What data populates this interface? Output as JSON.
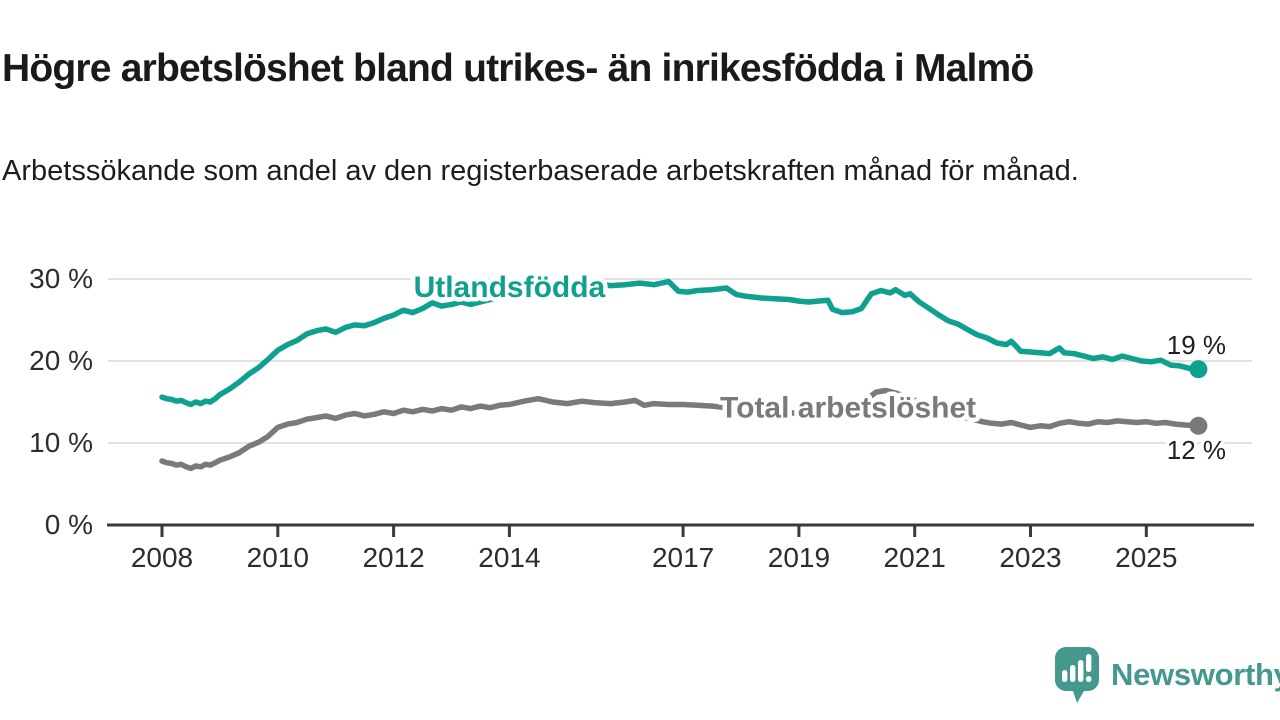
{
  "header": {
    "title": "Högre arbetslöshet bland utrikes- än inrikesfödda i Malmö",
    "subtitle": "Arbetssökande som andel av den registerbaserade arbetskraften månad för månad."
  },
  "chart_data": {
    "type": "line",
    "title": "Högre arbetslöshet bland utrikes- än inrikesfödda i Malmö",
    "xlabel": "",
    "ylabel": "",
    "grid": "horizontal",
    "xlim": [
      2007.05,
      2026.65
    ],
    "ylim": [
      0,
      33
    ],
    "x_axis": {
      "ticks": [
        2008,
        2010,
        2012,
        2014,
        2017,
        2019,
        2021,
        2023,
        2025
      ],
      "tick_labels": [
        "2008",
        "2010",
        "2012",
        "2014",
        "2017",
        "2019",
        "2021",
        "2023",
        "2025"
      ]
    },
    "y_axis": {
      "ticks": [
        {
          "value": 0,
          "label": "0 %"
        },
        {
          "value": 10,
          "label": "10 %"
        },
        {
          "value": 20,
          "label": "20 %"
        },
        {
          "value": 30,
          "label": "30 %"
        }
      ]
    },
    "series": [
      {
        "name": "Utlandsfödda",
        "color": "#10a08f",
        "end_label": "19 %",
        "label_anchor": {
          "year": 2014.0,
          "value": 29.0
        },
        "points": [
          [
            2008.0,
            15.6
          ],
          [
            2008.08,
            15.4
          ],
          [
            2008.17,
            15.3
          ],
          [
            2008.25,
            15.1
          ],
          [
            2008.33,
            15.2
          ],
          [
            2008.42,
            14.9
          ],
          [
            2008.5,
            14.7
          ],
          [
            2008.58,
            15.0
          ],
          [
            2008.67,
            14.8
          ],
          [
            2008.75,
            15.1
          ],
          [
            2008.83,
            15.0
          ],
          [
            2008.92,
            15.4
          ],
          [
            2009.0,
            15.9
          ],
          [
            2009.17,
            16.6
          ],
          [
            2009.33,
            17.4
          ],
          [
            2009.5,
            18.4
          ],
          [
            2009.67,
            19.2
          ],
          [
            2009.83,
            20.2
          ],
          [
            2010.0,
            21.3
          ],
          [
            2010.17,
            22.0
          ],
          [
            2010.33,
            22.5
          ],
          [
            2010.5,
            23.3
          ],
          [
            2010.67,
            23.7
          ],
          [
            2010.83,
            23.9
          ],
          [
            2011.0,
            23.5
          ],
          [
            2011.17,
            24.1
          ],
          [
            2011.33,
            24.4
          ],
          [
            2011.5,
            24.3
          ],
          [
            2011.67,
            24.7
          ],
          [
            2011.83,
            25.2
          ],
          [
            2012.0,
            25.6
          ],
          [
            2012.17,
            26.2
          ],
          [
            2012.33,
            25.9
          ],
          [
            2012.5,
            26.4
          ],
          [
            2012.67,
            27.1
          ],
          [
            2012.83,
            26.7
          ],
          [
            2013.0,
            26.9
          ],
          [
            2013.17,
            27.2
          ],
          [
            2013.33,
            26.9
          ],
          [
            2013.5,
            27.2
          ],
          [
            2013.67,
            27.5
          ],
          [
            2013.83,
            27.7
          ],
          [
            2014.0,
            27.9
          ],
          [
            2014.25,
            28.2
          ],
          [
            2014.5,
            28.5
          ],
          [
            2014.75,
            28.4
          ],
          [
            2015.0,
            28.7
          ],
          [
            2015.25,
            29.0
          ],
          [
            2015.5,
            29.4
          ],
          [
            2015.75,
            29.2
          ],
          [
            2016.0,
            29.3
          ],
          [
            2016.25,
            29.5
          ],
          [
            2016.5,
            29.3
          ],
          [
            2016.75,
            29.7
          ],
          [
            2016.92,
            28.5
          ],
          [
            2017.08,
            28.4
          ],
          [
            2017.25,
            28.6
          ],
          [
            2017.5,
            28.7
          ],
          [
            2017.75,
            28.9
          ],
          [
            2017.92,
            28.1
          ],
          [
            2018.08,
            27.9
          ],
          [
            2018.33,
            27.7
          ],
          [
            2018.58,
            27.6
          ],
          [
            2018.83,
            27.5
          ],
          [
            2019.0,
            27.3
          ],
          [
            2019.17,
            27.2
          ],
          [
            2019.33,
            27.3
          ],
          [
            2019.5,
            27.4
          ],
          [
            2019.58,
            26.3
          ],
          [
            2019.75,
            25.9
          ],
          [
            2019.92,
            26.0
          ],
          [
            2020.08,
            26.4
          ],
          [
            2020.25,
            28.2
          ],
          [
            2020.42,
            28.6
          ],
          [
            2020.58,
            28.3
          ],
          [
            2020.67,
            28.7
          ],
          [
            2020.83,
            28.0
          ],
          [
            2020.92,
            28.2
          ],
          [
            2021.08,
            27.2
          ],
          [
            2021.25,
            26.4
          ],
          [
            2021.42,
            25.6
          ],
          [
            2021.58,
            24.9
          ],
          [
            2021.75,
            24.5
          ],
          [
            2021.92,
            23.8
          ],
          [
            2022.08,
            23.2
          ],
          [
            2022.25,
            22.8
          ],
          [
            2022.42,
            22.2
          ],
          [
            2022.58,
            22.0
          ],
          [
            2022.67,
            22.4
          ],
          [
            2022.83,
            21.2
          ],
          [
            2023.0,
            21.1
          ],
          [
            2023.17,
            21.0
          ],
          [
            2023.33,
            20.9
          ],
          [
            2023.5,
            21.6
          ],
          [
            2023.58,
            21.0
          ],
          [
            2023.75,
            20.9
          ],
          [
            2023.92,
            20.6
          ],
          [
            2024.08,
            20.3
          ],
          [
            2024.25,
            20.5
          ],
          [
            2024.42,
            20.2
          ],
          [
            2024.58,
            20.6
          ],
          [
            2024.75,
            20.3
          ],
          [
            2024.92,
            20.0
          ],
          [
            2025.08,
            19.9
          ],
          [
            2025.25,
            20.1
          ],
          [
            2025.42,
            19.5
          ],
          [
            2025.58,
            19.4
          ],
          [
            2025.75,
            19.1
          ],
          [
            2025.9,
            19.0
          ]
        ]
      },
      {
        "name": "Total arbetslöshet",
        "color": "#7a7a7a",
        "end_label": "12 %",
        "label_anchor": {
          "year": 2019.85,
          "value": 14.35
        },
        "points": [
          [
            2008.0,
            7.8
          ],
          [
            2008.08,
            7.6
          ],
          [
            2008.17,
            7.5
          ],
          [
            2008.25,
            7.3
          ],
          [
            2008.33,
            7.4
          ],
          [
            2008.42,
            7.1
          ],
          [
            2008.5,
            6.9
          ],
          [
            2008.58,
            7.2
          ],
          [
            2008.67,
            7.1
          ],
          [
            2008.75,
            7.4
          ],
          [
            2008.83,
            7.3
          ],
          [
            2008.92,
            7.6
          ],
          [
            2009.0,
            7.9
          ],
          [
            2009.17,
            8.3
          ],
          [
            2009.33,
            8.8
          ],
          [
            2009.5,
            9.6
          ],
          [
            2009.67,
            10.1
          ],
          [
            2009.83,
            10.8
          ],
          [
            2010.0,
            11.9
          ],
          [
            2010.17,
            12.3
          ],
          [
            2010.33,
            12.5
          ],
          [
            2010.5,
            12.9
          ],
          [
            2010.67,
            13.1
          ],
          [
            2010.83,
            13.3
          ],
          [
            2011.0,
            13.0
          ],
          [
            2011.17,
            13.4
          ],
          [
            2011.33,
            13.6
          ],
          [
            2011.5,
            13.3
          ],
          [
            2011.67,
            13.5
          ],
          [
            2011.83,
            13.8
          ],
          [
            2012.0,
            13.6
          ],
          [
            2012.17,
            14.0
          ],
          [
            2012.33,
            13.8
          ],
          [
            2012.5,
            14.1
          ],
          [
            2012.67,
            13.9
          ],
          [
            2012.83,
            14.2
          ],
          [
            2013.0,
            14.0
          ],
          [
            2013.17,
            14.4
          ],
          [
            2013.33,
            14.2
          ],
          [
            2013.5,
            14.5
          ],
          [
            2013.67,
            14.3
          ],
          [
            2013.83,
            14.6
          ],
          [
            2014.0,
            14.7
          ],
          [
            2014.25,
            15.1
          ],
          [
            2014.5,
            15.4
          ],
          [
            2014.75,
            15.0
          ],
          [
            2015.0,
            14.8
          ],
          [
            2015.25,
            15.1
          ],
          [
            2015.5,
            14.9
          ],
          [
            2015.75,
            14.8
          ],
          [
            2016.0,
            15.0
          ],
          [
            2016.17,
            15.2
          ],
          [
            2016.33,
            14.6
          ],
          [
            2016.5,
            14.8
          ],
          [
            2016.75,
            14.7
          ],
          [
            2017.0,
            14.7
          ],
          [
            2017.25,
            14.6
          ],
          [
            2017.5,
            14.5
          ],
          [
            2017.75,
            14.3
          ],
          [
            2018.0,
            14.2
          ],
          [
            2018.33,
            14.0
          ],
          [
            2018.67,
            13.8
          ],
          [
            2019.0,
            13.6
          ],
          [
            2019.33,
            13.4
          ],
          [
            2019.67,
            13.3
          ],
          [
            2019.92,
            13.6
          ],
          [
            2020.17,
            15.3
          ],
          [
            2020.33,
            16.2
          ],
          [
            2020.5,
            16.4
          ],
          [
            2020.67,
            16.1
          ],
          [
            2020.83,
            15.7
          ],
          [
            2021.0,
            15.2
          ],
          [
            2021.25,
            14.5
          ],
          [
            2021.5,
            13.8
          ],
          [
            2021.75,
            13.2
          ],
          [
            2022.0,
            12.9
          ],
          [
            2022.17,
            12.6
          ],
          [
            2022.33,
            12.4
          ],
          [
            2022.5,
            12.3
          ],
          [
            2022.67,
            12.5
          ],
          [
            2022.83,
            12.2
          ],
          [
            2023.0,
            11.9
          ],
          [
            2023.17,
            12.1
          ],
          [
            2023.33,
            12.0
          ],
          [
            2023.5,
            12.4
          ],
          [
            2023.67,
            12.6
          ],
          [
            2023.83,
            12.4
          ],
          [
            2024.0,
            12.3
          ],
          [
            2024.17,
            12.6
          ],
          [
            2024.33,
            12.5
          ],
          [
            2024.5,
            12.7
          ],
          [
            2024.67,
            12.6
          ],
          [
            2024.83,
            12.5
          ],
          [
            2025.0,
            12.6
          ],
          [
            2025.17,
            12.4
          ],
          [
            2025.33,
            12.5
          ],
          [
            2025.5,
            12.3
          ],
          [
            2025.67,
            12.2
          ],
          [
            2025.9,
            12.1
          ]
        ]
      }
    ],
    "style": {
      "grid_color": "#e2e2e2",
      "axis_color": "#3a3a3a",
      "tick_label_color": "#2d2d2d",
      "end_label_color": "#1f1f1f"
    }
  },
  "branding": {
    "name": "Newsworthy",
    "color": "#45988e",
    "icon": "newsworthy-speech-bubble-chart-icon"
  }
}
